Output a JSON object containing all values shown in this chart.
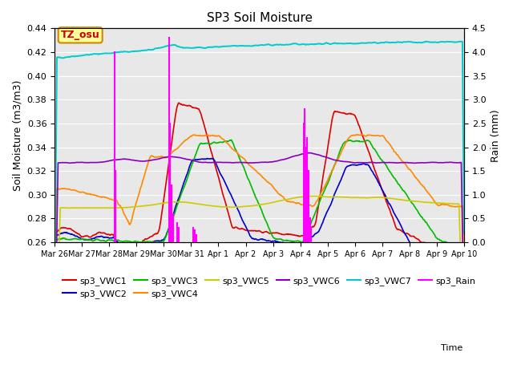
{
  "title": "SP3 Soil Moisture",
  "xlabel": "Time",
  "ylabel_left": "Soil Moisture (m3/m3)",
  "ylabel_right": "Rain (mm)",
  "ylim_left": [
    0.26,
    0.44
  ],
  "ylim_right": [
    0.0,
    4.5
  ],
  "colors": {
    "VWC1": "#dd0000",
    "VWC2": "#0000cc",
    "VWC3": "#00bb00",
    "VWC4": "#ff8800",
    "VWC5": "#cccc00",
    "VWC6": "#8800bb",
    "VWC7": "#00cccc",
    "Rain": "#ff00ff"
  },
  "background_color": "#e8e8e8",
  "annotation_text": "TZ_osu",
  "annotation_color": "#cc0000",
  "annotation_bg": "#ffff99",
  "annotation_border": "#cc8800",
  "n_points": 720,
  "x_tick_labels": [
    "Mar 26",
    "Mar 27",
    "Mar 28",
    "Mar 29",
    "Mar 30",
    "Mar 31",
    "Apr 1",
    "Apr 2",
    "Apr 3",
    "Apr 4",
    "Apr 5",
    "Apr 6",
    "Apr 7",
    "Apr 8",
    "Apr 9",
    "Apr 10"
  ]
}
